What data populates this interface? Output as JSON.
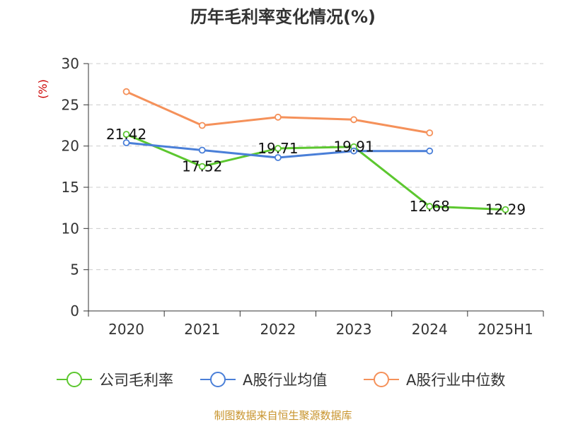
{
  "chart_data": {
    "type": "line",
    "title": "历年毛利率变化情况(%)",
    "ylabel": "(%)",
    "xlabel": "",
    "categories": [
      "2020",
      "2021",
      "2022",
      "2023",
      "2024",
      "2025H1"
    ],
    "ylim": [
      0,
      30
    ],
    "yticks": [
      0,
      5,
      10,
      15,
      20,
      25,
      30
    ],
    "grid": true,
    "legend_position": "bottom",
    "series": [
      {
        "name": "公司毛利率",
        "color": "#5cc72f",
        "values": [
          21.42,
          17.52,
          19.71,
          19.91,
          12.68,
          12.29
        ],
        "labels": [
          "21.42",
          "17.52",
          "19.71",
          "19.91",
          "12.68",
          "12.29"
        ]
      },
      {
        "name": "A股行业均值",
        "color": "#4a7fd8",
        "values": [
          20.4,
          19.5,
          18.6,
          19.4,
          19.4,
          null
        ]
      },
      {
        "name": "A股行业中位数",
        "color": "#f5915a",
        "values": [
          26.6,
          22.5,
          23.5,
          23.2,
          21.6,
          null
        ]
      }
    ],
    "source": "制图数据来自恒生聚源数据库"
  }
}
